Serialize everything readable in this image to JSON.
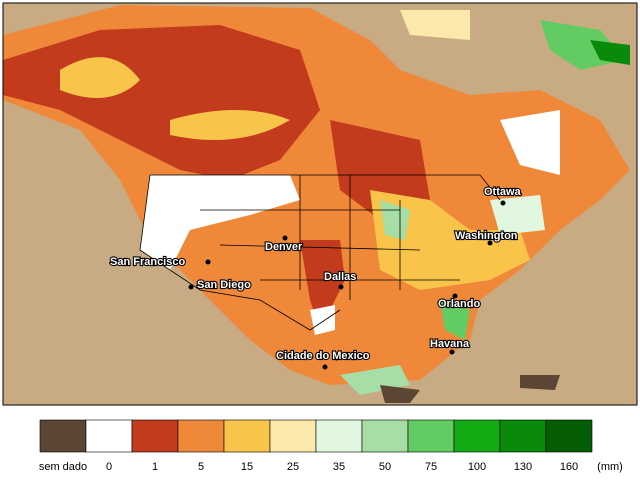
{
  "map": {
    "cities": [
      "Ottawa",
      "Washington",
      "Denver",
      "San Francisco",
      "San Diego",
      "Dallas",
      "Orlando",
      "Havana",
      "Cidade do Mexico"
    ]
  },
  "legend": {
    "items": [
      {
        "label": "sem dado",
        "color": "#5b4636"
      },
      {
        "label": "0",
        "color": "#ffffff"
      },
      {
        "label": "1",
        "color": "#c23b1c"
      },
      {
        "label": "5",
        "color": "#f0883a"
      },
      {
        "label": "15",
        "color": "#f8c44a"
      },
      {
        "label": "25",
        "color": "#fce8aa"
      },
      {
        "label": "35",
        "color": "#e2f7df"
      },
      {
        "label": "50",
        "color": "#a6dea6"
      },
      {
        "label": "75",
        "color": "#62cc62"
      },
      {
        "label": "100",
        "color": "#14ab14"
      },
      {
        "label": "130",
        "color": "#0a8a0a"
      },
      {
        "label": "160",
        "color": "#055e05"
      }
    ],
    "unit": "(mm)"
  }
}
